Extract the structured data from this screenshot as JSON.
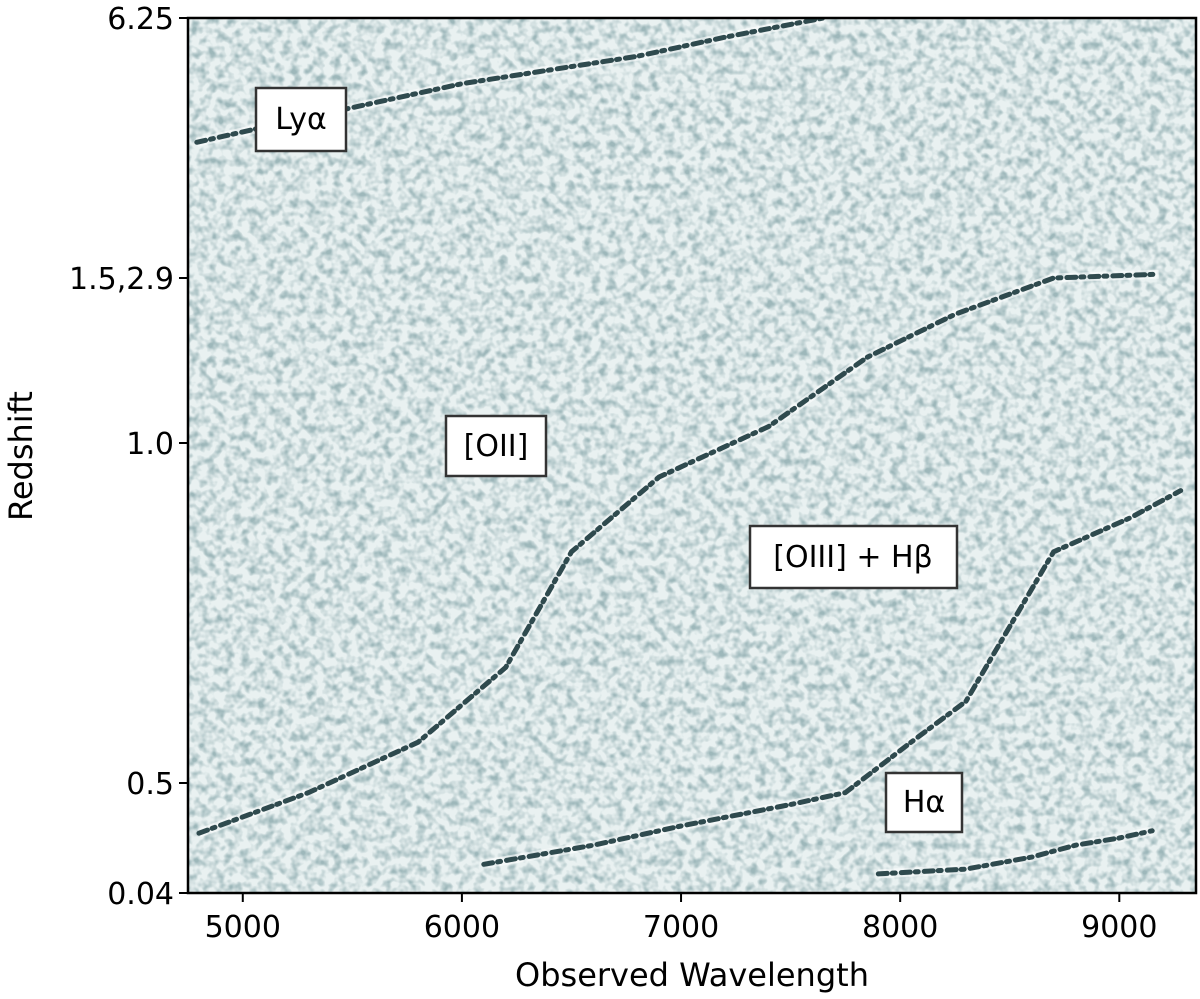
{
  "chart_data": {
    "type": "heatmap",
    "xlabel": "Observed Wavelength",
    "ylabel": "Redshift",
    "xlim": [
      4750,
      9350
    ],
    "x_ticks": [
      "5000",
      "6000",
      "7000",
      "8000",
      "9000"
    ],
    "x_tick_values": [
      5000,
      6000,
      7000,
      8000,
      9000
    ],
    "y_ticks": [
      "0.04",
      "0.5",
      "1.0",
      "1.5,2.9",
      "6.25"
    ],
    "grid": false,
    "colormap": [
      "#ffffff",
      "#2f4a4e"
    ],
    "annotations": [
      {
        "label": "Lyα"
      },
      {
        "label": "[OII]"
      },
      {
        "label": "[OIII] + Hβ"
      },
      {
        "label": "Hα"
      }
    ],
    "series": [
      {
        "name": "Lyα",
        "points": [
          [
            4790,
            3.98
          ],
          [
            5200,
            4.35
          ],
          [
            5600,
            4.7
          ],
          [
            6000,
            5.05
          ],
          [
            6400,
            5.3
          ],
          [
            6800,
            5.55
          ],
          [
            7200,
            5.9
          ],
          [
            7650,
            6.25
          ]
        ]
      },
      {
        "name": "[OII]",
        "points": [
          [
            4800,
            0.29
          ],
          [
            5300,
            0.46
          ],
          [
            5800,
            0.56
          ],
          [
            6200,
            0.67
          ],
          [
            6500,
            0.84
          ],
          [
            6900,
            0.95
          ],
          [
            7400,
            1.05
          ],
          [
            7850,
            1.26
          ],
          [
            8250,
            1.39
          ],
          [
            8700,
            1.5
          ],
          [
            9180,
            1.57
          ]
        ]
      },
      {
        "name": "[OIII] + Hβ",
        "points": [
          [
            6100,
            0.16
          ],
          [
            6600,
            0.24
          ],
          [
            7000,
            0.32
          ],
          [
            7500,
            0.41
          ],
          [
            7750,
            0.46
          ],
          [
            8050,
            0.56
          ],
          [
            8300,
            0.62
          ],
          [
            8500,
            0.73
          ],
          [
            8700,
            0.84
          ],
          [
            9050,
            0.89
          ],
          [
            9280,
            0.93
          ]
        ]
      },
      {
        "name": "Hα",
        "points": [
          [
            7900,
            0.12
          ],
          [
            8300,
            0.14
          ],
          [
            8600,
            0.19
          ],
          [
            8800,
            0.24
          ],
          [
            9000,
            0.27
          ],
          [
            9150,
            0.3
          ]
        ]
      }
    ]
  }
}
